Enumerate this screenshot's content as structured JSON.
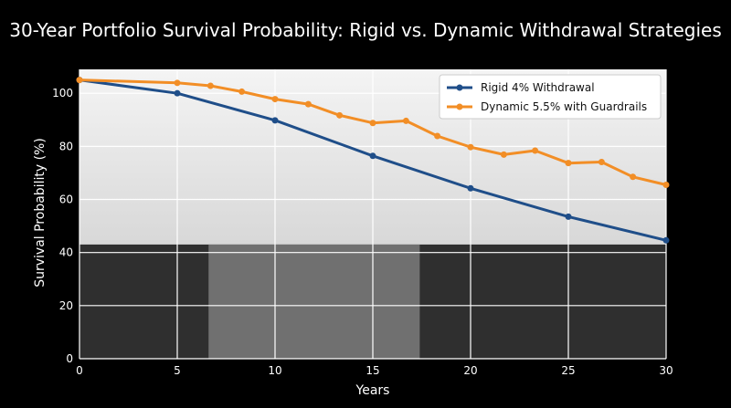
{
  "chart_data": {
    "type": "line",
    "title": "30-Year Portfolio Survival Probability: Rigid vs. Dynamic Withdrawal Strategies",
    "xlabel": "Years",
    "ylabel": "Survival Probability (%)",
    "xlim": [
      0,
      30
    ],
    "ylim": [
      0,
      109
    ],
    "xticks": [
      0,
      5,
      10,
      15,
      20,
      25,
      30
    ],
    "yticks": [
      0,
      20,
      40,
      60,
      80,
      100
    ],
    "grid": true,
    "legend_position": "top-right",
    "series": [
      {
        "name": "Rigid 4% Withdrawal",
        "color": "#1f4e89",
        "points": [
          [
            0,
            105
          ],
          [
            5,
            100
          ],
          [
            10,
            89.8
          ],
          [
            15,
            76.4
          ],
          [
            20,
            64.2
          ],
          [
            25,
            53.5
          ],
          [
            30,
            44.6
          ]
        ]
      },
      {
        "name": "Dynamic 5.5% with Guardrails",
        "color": "#f28e26",
        "points": [
          [
            0,
            105
          ],
          [
            5,
            103.9
          ],
          [
            6.7,
            102.8
          ],
          [
            8.3,
            100.6
          ],
          [
            10,
            97.8
          ],
          [
            11.7,
            95.9
          ],
          [
            13.3,
            91.7
          ],
          [
            15,
            88.8
          ],
          [
            16.7,
            89.6
          ],
          [
            18.3,
            83.9
          ],
          [
            20,
            79.7
          ],
          [
            21.7,
            76.9
          ],
          [
            23.3,
            78.4
          ],
          [
            25,
            73.7
          ],
          [
            26.7,
            74.1
          ],
          [
            28.3,
            68.5
          ],
          [
            30,
            65.5
          ]
        ]
      }
    ]
  }
}
